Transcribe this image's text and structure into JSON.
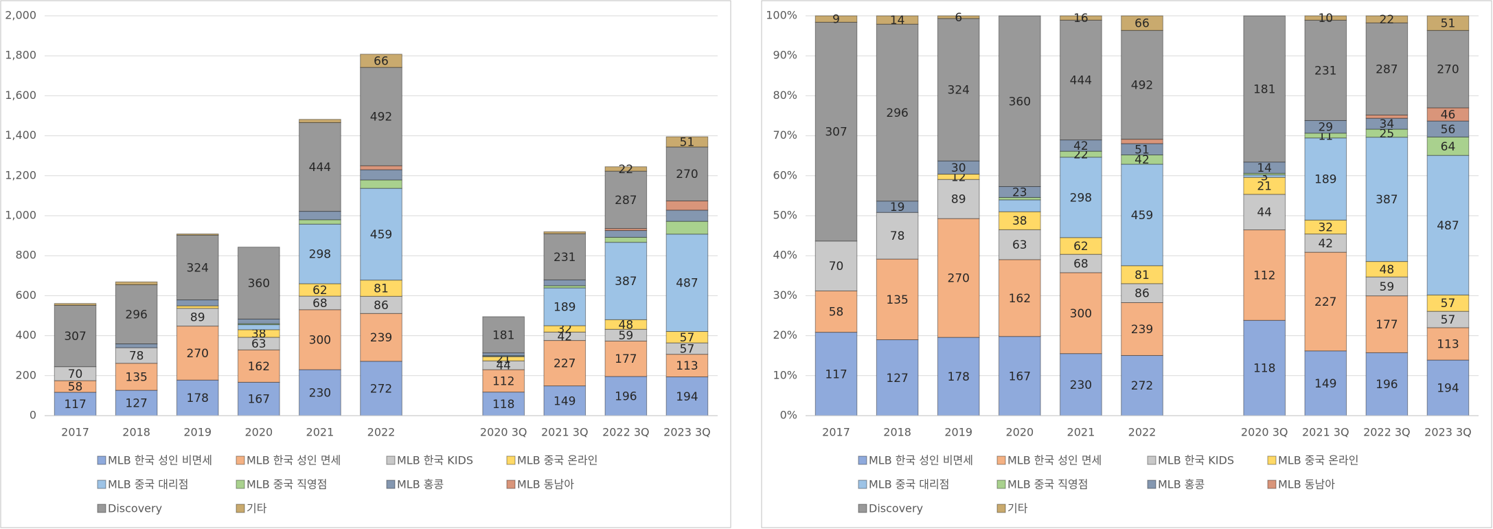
{
  "chart_data": [
    {
      "type": "bar",
      "stacked": "absolute",
      "grid": true,
      "categories": [
        "2017",
        "2018",
        "2019",
        "2020",
        "2021",
        "2022",
        null,
        "2020 3Q",
        "2021 3Q",
        "2022 3Q",
        "2023 3Q"
      ],
      "ylim": [
        0,
        2000
      ],
      "yticks": [
        0,
        200,
        400,
        600,
        800,
        {
          "value": 1000,
          "label": "1,000"
        },
        {
          "value": 1200,
          "label": "1,200"
        },
        {
          "value": 1400,
          "label": "1,400"
        },
        {
          "value": 1600,
          "label": "1,600"
        },
        {
          "value": 1800,
          "label": "1,800"
        },
        {
          "value": 2000,
          "label": "2,000"
        }
      ],
      "series": [
        {
          "name": "MLB 한국 성인 비면세",
          "color": "#8faadc",
          "values": [
            117,
            127,
            178,
            167,
            230,
            272,
            null,
            118,
            149,
            196,
            194
          ],
          "value_labels": [
            "117",
            "127",
            "178",
            "167",
            "230",
            "272",
            null,
            "118",
            "149",
            "196",
            "194"
          ]
        },
        {
          "name": "MLB 한국 성인 면세",
          "color": "#f4b183",
          "values": [
            58,
            135,
            270,
            162,
            300,
            239,
            null,
            112,
            227,
            177,
            113
          ],
          "value_labels": [
            "58",
            "135",
            "270",
            "162",
            "300",
            "239",
            null,
            "112",
            "227",
            "177",
            "113"
          ]
        },
        {
          "name": "MLB 한국 KIDS",
          "color": "#c9c9c9",
          "values": [
            70,
            78,
            89,
            63,
            68,
            86,
            null,
            44,
            42,
            59,
            57
          ],
          "value_labels": [
            "70",
            "78",
            "89",
            "63",
            "68",
            "86",
            null,
            "44",
            "42",
            "59",
            "57"
          ]
        },
        {
          "name": "MLB 중국 온라인",
          "color": "#ffd966",
          "values": [
            0,
            0,
            12,
            38,
            62,
            81,
            null,
            21,
            32,
            48,
            57
          ],
          "value_labels": [
            null,
            null,
            null,
            "38",
            "62",
            "81",
            null,
            "21",
            "32",
            "48",
            "57"
          ]
        },
        {
          "name": "MLB 중국 대리점",
          "color": "#9dc3e6",
          "values": [
            0,
            0,
            0,
            25,
            298,
            459,
            null,
            3,
            189,
            387,
            487
          ],
          "value_labels": [
            null,
            null,
            null,
            null,
            "298",
            "459",
            null,
            null,
            "189",
            "387",
            "487"
          ]
        },
        {
          "name": "MLB 중국 직영점",
          "color": "#a9d18e",
          "values": [
            0,
            0,
            0,
            5,
            22,
            42,
            null,
            2,
            11,
            25,
            64
          ],
          "value_labels": [
            null,
            null,
            null,
            null,
            null,
            null,
            null,
            null,
            null,
            null,
            null
          ]
        },
        {
          "name": "MLB 홍콩",
          "color": "#8497b0",
          "values": [
            0,
            19,
            30,
            23,
            42,
            51,
            null,
            14,
            29,
            34,
            56
          ],
          "value_labels": [
            null,
            null,
            null,
            null,
            null,
            null,
            null,
            null,
            null,
            null,
            null
          ]
        },
        {
          "name": "MLB 동남아",
          "color": "#d9957a",
          "values": [
            0,
            0,
            0,
            0,
            0,
            20,
            null,
            0,
            0,
            10,
            46
          ],
          "value_labels": [
            null,
            null,
            null,
            null,
            null,
            null,
            null,
            null,
            null,
            null,
            null
          ]
        },
        {
          "name": "Discovery",
          "color": "#999999",
          "values": [
            307,
            296,
            324,
            360,
            444,
            492,
            null,
            181,
            231,
            287,
            270
          ],
          "value_labels": [
            "307",
            "296",
            "324",
            "360",
            "444",
            "492",
            null,
            "181",
            "231",
            "287",
            "270"
          ]
        },
        {
          "name": "기타",
          "color": "#c9aa6e",
          "values": [
            9,
            14,
            6,
            0,
            16,
            66,
            null,
            0,
            10,
            22,
            51
          ],
          "value_labels": [
            null,
            null,
            null,
            null,
            null,
            "66",
            null,
            null,
            null,
            "22",
            "51"
          ]
        }
      ]
    },
    {
      "type": "bar",
      "stacked": "percent",
      "grid": true,
      "categories": [
        "2017",
        "2018",
        "2019",
        "2020",
        "2021",
        "2022",
        null,
        "2020 3Q",
        "2021 3Q",
        "2022 3Q",
        "2023 3Q"
      ],
      "ylim": [
        0,
        100
      ],
      "yticks": [
        {
          "value": 0,
          "label": "0%"
        },
        {
          "value": 10,
          "label": "10%"
        },
        {
          "value": 20,
          "label": "20%"
        },
        {
          "value": 30,
          "label": "30%"
        },
        {
          "value": 40,
          "label": "40%"
        },
        {
          "value": 50,
          "label": "50%"
        },
        {
          "value": 60,
          "label": "60%"
        },
        {
          "value": 70,
          "label": "70%"
        },
        {
          "value": 80,
          "label": "80%"
        },
        {
          "value": 90,
          "label": "90%"
        },
        {
          "value": 100,
          "label": "100%"
        }
      ],
      "series": [
        {
          "name": "MLB 한국 성인 비면세",
          "color": "#8faadc",
          "values": [
            117,
            127,
            178,
            167,
            230,
            272,
            null,
            118,
            149,
            196,
            194
          ],
          "value_labels": [
            "117",
            "127",
            "178",
            "167",
            "230",
            "272",
            null,
            "118",
            "149",
            "196",
            "194"
          ]
        },
        {
          "name": "MLB 한국 성인 면세",
          "color": "#f4b183",
          "values": [
            58,
            135,
            270,
            162,
            300,
            239,
            null,
            112,
            227,
            177,
            113
          ],
          "value_labels": [
            "58",
            "135",
            "270",
            "162",
            "300",
            "239",
            null,
            "112",
            "227",
            "177",
            "113"
          ]
        },
        {
          "name": "MLB 한국 KIDS",
          "color": "#c9c9c9",
          "values": [
            70,
            78,
            89,
            63,
            68,
            86,
            null,
            44,
            42,
            59,
            57
          ],
          "value_labels": [
            "70",
            "78",
            "89",
            "63",
            "68",
            "86",
            null,
            "44",
            "42",
            "59",
            "57"
          ]
        },
        {
          "name": "MLB 중국 온라인",
          "color": "#ffd966",
          "values": [
            0,
            0,
            12,
            38,
            62,
            81,
            null,
            21,
            32,
            48,
            57
          ],
          "value_labels": [
            null,
            null,
            "12",
            "38",
            "62",
            "81",
            null,
            "21",
            "32",
            "48",
            "57"
          ]
        },
        {
          "name": "MLB 중국 대리점",
          "color": "#9dc3e6",
          "values": [
            0,
            0,
            0,
            25,
            298,
            459,
            null,
            3,
            189,
            387,
            487
          ],
          "value_labels": [
            null,
            null,
            null,
            null,
            "298",
            "459",
            null,
            "3",
            "189",
            "387",
            "487"
          ]
        },
        {
          "name": "MLB 중국 직영점",
          "color": "#a9d18e",
          "values": [
            0,
            0,
            0,
            5,
            22,
            42,
            null,
            2,
            11,
            25,
            64
          ],
          "value_labels": [
            null,
            null,
            null,
            null,
            "22",
            "42",
            null,
            null,
            "11",
            "25",
            "64"
          ]
        },
        {
          "name": "MLB 홍콩",
          "color": "#8497b0",
          "values": [
            0,
            19,
            30,
            23,
            42,
            51,
            null,
            14,
            29,
            34,
            56
          ],
          "value_labels": [
            null,
            "19",
            "30",
            "23",
            "42",
            "51",
            null,
            "14",
            "29",
            "34",
            "56"
          ]
        },
        {
          "name": "MLB 동남아",
          "color": "#d9957a",
          "values": [
            0,
            0,
            0,
            0,
            0,
            20,
            null,
            0,
            0,
            10,
            46
          ],
          "value_labels": [
            null,
            null,
            null,
            null,
            null,
            null,
            null,
            null,
            null,
            null,
            "46"
          ]
        },
        {
          "name": "Discovery",
          "color": "#999999",
          "values": [
            307,
            296,
            324,
            360,
            444,
            492,
            null,
            181,
            231,
            287,
            270
          ],
          "value_labels": [
            "307",
            "296",
            "324",
            "360",
            "444",
            "492",
            null,
            "181",
            "231",
            "287",
            "270"
          ]
        },
        {
          "name": "기타",
          "color": "#c9aa6e",
          "values": [
            9,
            14,
            6,
            0,
            16,
            66,
            null,
            0,
            10,
            22,
            51
          ],
          "value_labels": [
            "9",
            "14",
            "6",
            null,
            "16",
            "66",
            null,
            null,
            "10",
            "22",
            "51"
          ]
        }
      ]
    }
  ]
}
